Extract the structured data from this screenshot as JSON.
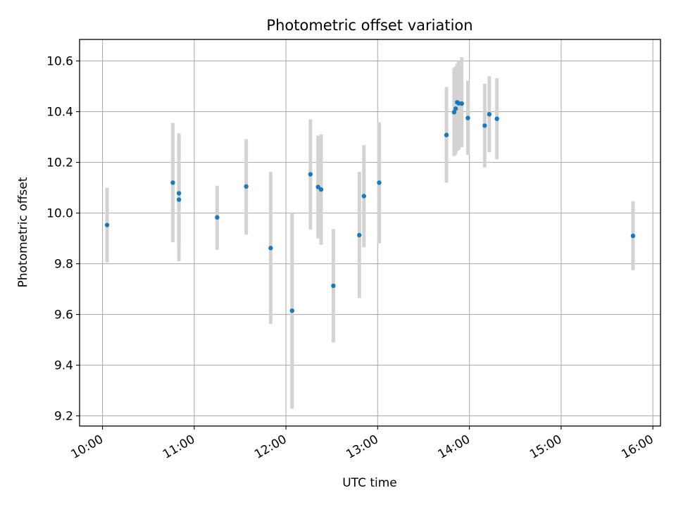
{
  "chart_data": {
    "type": "scatter",
    "title": "Photometric offset variation",
    "xlabel": "UTC time",
    "ylabel": "Photometric offset",
    "grid": true,
    "x_ticks": [
      "10:00",
      "11:00",
      "12:00",
      "13:00",
      "14:00",
      "15:00",
      "16:00"
    ],
    "y_ticks": [
      "9.2",
      "9.4",
      "9.6",
      "9.8",
      "10.0",
      "10.2",
      "10.4",
      "10.6"
    ],
    "xlim": [
      "09:45",
      "16:05"
    ],
    "ylim": [
      9.16,
      10.685
    ],
    "colors": {
      "point": "#1f77b4",
      "errorbar": "#d3d3d3",
      "grid": "#b0b0b0"
    },
    "points": [
      {
        "x": "10:03",
        "y": 9.953,
        "yerr_low": 9.805,
        "yerr_high": 10.1
      },
      {
        "x": "10:46",
        "y": 10.12,
        "yerr_low": 9.885,
        "yerr_high": 10.355
      },
      {
        "x": "10:50",
        "y": 10.078,
        "yerr_low": 9.88,
        "yerr_high": 10.315
      },
      {
        "x": "10:50",
        "y": 10.053,
        "yerr_low": 9.81,
        "yerr_high": 10.295
      },
      {
        "x": "11:15",
        "y": 9.983,
        "yerr_low": 9.855,
        "yerr_high": 10.108
      },
      {
        "x": "11:34",
        "y": 10.105,
        "yerr_low": 9.915,
        "yerr_high": 10.292
      },
      {
        "x": "11:50",
        "y": 9.862,
        "yerr_low": 9.562,
        "yerr_high": 10.162
      },
      {
        "x": "12:04",
        "y": 9.615,
        "yerr_low": 9.228,
        "yerr_high": 10.0
      },
      {
        "x": "12:16",
        "y": 10.153,
        "yerr_low": 9.935,
        "yerr_high": 10.37
      },
      {
        "x": "12:21",
        "y": 10.103,
        "yerr_low": 9.9,
        "yerr_high": 10.305
      },
      {
        "x": "12:23",
        "y": 10.093,
        "yerr_low": 9.875,
        "yerr_high": 10.31
      },
      {
        "x": "12:31",
        "y": 9.713,
        "yerr_low": 9.49,
        "yerr_high": 9.937
      },
      {
        "x": "12:48",
        "y": 9.913,
        "yerr_low": 9.665,
        "yerr_high": 10.162
      },
      {
        "x": "12:51",
        "y": 10.067,
        "yerr_low": 9.865,
        "yerr_high": 10.268
      },
      {
        "x": "13:01",
        "y": 10.12,
        "yerr_low": 9.88,
        "yerr_high": 10.358
      },
      {
        "x": "13:45",
        "y": 10.308,
        "yerr_low": 10.12,
        "yerr_high": 10.497
      },
      {
        "x": "13:50",
        "y": 10.398,
        "yerr_low": 10.225,
        "yerr_high": 10.572
      },
      {
        "x": "13:51",
        "y": 10.412,
        "yerr_low": 10.232,
        "yerr_high": 10.578
      },
      {
        "x": "13:52",
        "y": 10.437,
        "yerr_low": 10.245,
        "yerr_high": 10.59
      },
      {
        "x": "13:53",
        "y": 10.433,
        "yerr_low": 10.25,
        "yerr_high": 10.6
      },
      {
        "x": "13:55",
        "y": 10.432,
        "yerr_low": 10.26,
        "yerr_high": 10.615
      },
      {
        "x": "13:59",
        "y": 10.375,
        "yerr_low": 10.23,
        "yerr_high": 10.522
      },
      {
        "x": "14:10",
        "y": 10.345,
        "yerr_low": 10.18,
        "yerr_high": 10.51
      },
      {
        "x": "14:13",
        "y": 10.39,
        "yerr_low": 10.24,
        "yerr_high": 10.54
      },
      {
        "x": "14:18",
        "y": 10.372,
        "yerr_low": 10.212,
        "yerr_high": 10.532
      },
      {
        "x": "15:47",
        "y": 9.91,
        "yerr_low": 9.775,
        "yerr_high": 10.047
      }
    ]
  }
}
